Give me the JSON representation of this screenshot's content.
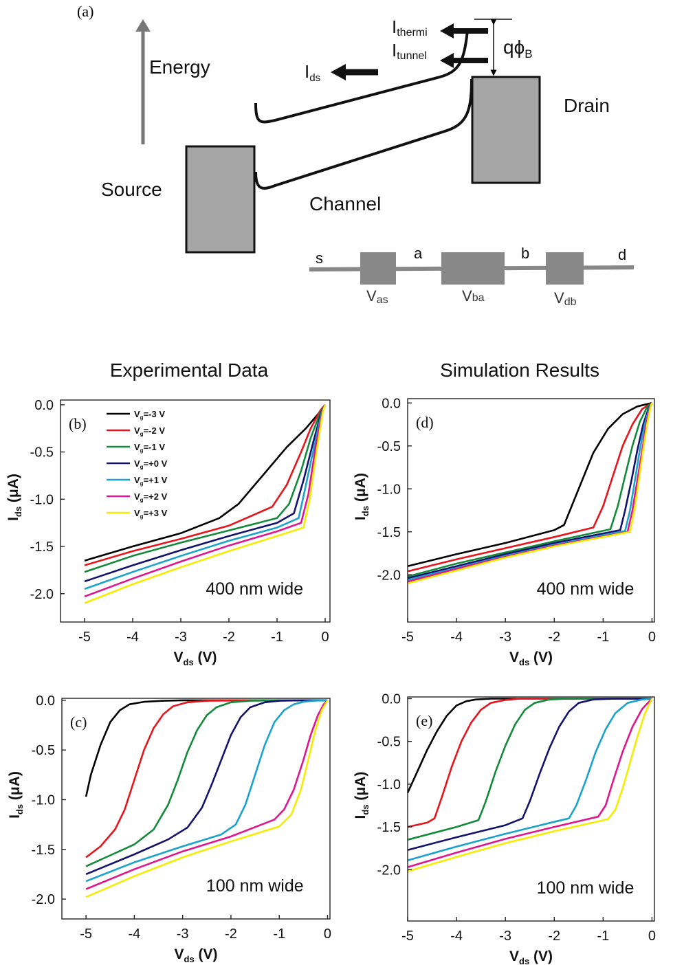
{
  "diagram": {
    "panel_label": "(a)",
    "energy_label": "Energy",
    "source_label": "Source",
    "drain_label": "Drain",
    "channel_label": "Channel",
    "ids_main": "I",
    "ids_sub": "ds",
    "ithermi_main": "I",
    "ithermi_sub": "thermi",
    "itunnel_main": "I",
    "itunnel_sub": "tunnel",
    "barrier_main": "qϕ",
    "barrier_sub": "B",
    "circuit": {
      "s": "s",
      "a": "a",
      "b": "b",
      "d": "d",
      "vas_main": "V",
      "vas_sub": "as",
      "vba_main": "V",
      "vba_sub": "ba",
      "vdb_main": "V",
      "vdb_sub": "db"
    }
  },
  "headings": {
    "left": "Experimental Data",
    "right": "Simulation Results"
  },
  "legend": [
    {
      "prefix": "V",
      "sub": "g",
      "value": "=-3 V",
      "color": "#000000"
    },
    {
      "prefix": "V",
      "sub": "g",
      "value": "=-2 V",
      "color": "#e8141b"
    },
    {
      "prefix": "V",
      "sub": "g",
      "value": "=-1 V",
      "color": "#128a3a"
    },
    {
      "prefix": "V",
      "sub": "g",
      "value": "=+0 V",
      "color": "#13136e"
    },
    {
      "prefix": "V",
      "sub": "g",
      "value": "=+1 V",
      "color": "#19a3cc"
    },
    {
      "prefix": "V",
      "sub": "g",
      "value": "=+2 V",
      "color": "#e0168f"
    },
    {
      "prefix": "V",
      "sub": "g",
      "value": "=+3 V",
      "color": "#f5ec00"
    }
  ],
  "chart_data": [
    {
      "id": "b",
      "type": "line",
      "panel_label": "(b)",
      "annotation": "400 nm wide",
      "xlabel_main": "V",
      "xlabel_sub": "ds",
      "xlabel_unit": " (V)",
      "ylabel_main": "I",
      "ylabel_sub": "ds",
      "ylabel_unit": " (μA)",
      "xlim": [
        -5.5,
        0.1
      ],
      "ylim": [
        -2.3,
        0.05
      ],
      "xticks": [
        -5,
        -4,
        -3,
        -2,
        -1,
        0
      ],
      "xtick_labels": [
        "-5",
        "-4",
        "-3",
        "-2",
        "-1",
        "0"
      ],
      "yticks": [
        0,
        -0.5,
        -1,
        -1.5,
        -2
      ],
      "ytick_labels": [
        "0.0",
        "-0.5",
        "-1.0",
        "-1.5",
        "-2.0"
      ],
      "series": [
        {
          "name": "Vg=-3 V",
          "color": "#000000",
          "x": [
            -5,
            -4,
            -3,
            -2.2,
            -1.8,
            -1.3,
            -0.8,
            -0.4,
            -0.15,
            0
          ],
          "y": [
            -1.65,
            -1.5,
            -1.36,
            -1.2,
            -1.05,
            -0.75,
            -0.45,
            -0.25,
            -0.1,
            0
          ]
        },
        {
          "name": "Vg=-2 V",
          "color": "#e8141b",
          "x": [
            -5,
            -4,
            -3,
            -2,
            -1.1,
            -0.8,
            -0.5,
            -0.3,
            -0.1,
            0
          ],
          "y": [
            -1.7,
            -1.55,
            -1.42,
            -1.28,
            -1.08,
            -0.85,
            -0.5,
            -0.25,
            -0.06,
            0
          ]
        },
        {
          "name": "Vg=-1 V",
          "color": "#128a3a",
          "x": [
            -5,
            -4,
            -3,
            -2,
            -1,
            -0.75,
            -0.5,
            -0.3,
            -0.1,
            0
          ],
          "y": [
            -1.77,
            -1.6,
            -1.46,
            -1.33,
            -1.2,
            -1.05,
            -0.7,
            -0.35,
            -0.08,
            0
          ]
        },
        {
          "name": "Vg=+0 V",
          "color": "#13136e",
          "x": [
            -5,
            -4,
            -3,
            -2,
            -1,
            -0.65,
            -0.45,
            -0.25,
            -0.08,
            0
          ],
          "y": [
            -1.87,
            -1.7,
            -1.54,
            -1.39,
            -1.25,
            -1.15,
            -0.8,
            -0.4,
            -0.08,
            0
          ]
        },
        {
          "name": "Vg=+1 V",
          "color": "#19a3cc",
          "x": [
            -5,
            -4,
            -3,
            -2,
            -1,
            -0.55,
            -0.4,
            -0.22,
            -0.07,
            0
          ],
          "y": [
            -1.95,
            -1.77,
            -1.6,
            -1.44,
            -1.3,
            -1.2,
            -0.85,
            -0.42,
            -0.08,
            0
          ]
        },
        {
          "name": "Vg=+2 V",
          "color": "#e0168f",
          "x": [
            -5,
            -4,
            -3,
            -2,
            -1,
            -0.5,
            -0.35,
            -0.2,
            -0.06,
            0
          ],
          "y": [
            -2.03,
            -1.84,
            -1.66,
            -1.49,
            -1.34,
            -1.25,
            -0.95,
            -0.45,
            -0.08,
            0
          ]
        },
        {
          "name": "Vg=+3 V",
          "color": "#f5ec00",
          "x": [
            -5,
            -4,
            -3,
            -2,
            -1,
            -0.45,
            -0.32,
            -0.18,
            -0.05,
            0
          ],
          "y": [
            -2.1,
            -1.9,
            -1.72,
            -1.55,
            -1.39,
            -1.3,
            -1.0,
            -0.5,
            -0.08,
            0
          ]
        }
      ]
    },
    {
      "id": "d",
      "type": "line",
      "panel_label": "(d)",
      "annotation": "400 nm wide",
      "xlabel_main": "V",
      "xlabel_sub": "ds",
      "xlabel_unit": " (V)",
      "ylabel_main": "I",
      "ylabel_sub": "ds",
      "ylabel_unit": " (μA)",
      "xlim": [
        -5,
        0.05
      ],
      "ylim": [
        -2.55,
        0.05
      ],
      "xticks": [
        -5,
        -4,
        -3,
        -2,
        -1,
        0
      ],
      "xtick_labels": [
        "-5",
        "-4",
        "-3",
        "-2",
        "-1",
        "0"
      ],
      "yticks": [
        0,
        -0.5,
        -1,
        -1.5,
        -2
      ],
      "ytick_labels": [
        "0.0",
        "-0.5",
        "-1.0",
        "-1.5",
        "-2.0"
      ],
      "series": [
        {
          "name": "Vg=-3 V",
          "color": "#000000",
          "x": [
            -5,
            -4,
            -3,
            -2,
            -1.8,
            -1.5,
            -1.2,
            -0.9,
            -0.6,
            -0.3,
            0
          ],
          "y": [
            -1.9,
            -1.76,
            -1.63,
            -1.48,
            -1.42,
            -1.0,
            -0.58,
            -0.3,
            -0.13,
            -0.04,
            0
          ]
        },
        {
          "name": "Vg=-2 V",
          "color": "#e8141b",
          "x": [
            -5,
            -4,
            -3,
            -2,
            -1.2,
            -1.0,
            -0.8,
            -0.6,
            -0.4,
            -0.2,
            0
          ],
          "y": [
            -1.96,
            -1.82,
            -1.69,
            -1.56,
            -1.45,
            -1.2,
            -0.85,
            -0.5,
            -0.25,
            -0.07,
            0
          ]
        },
        {
          "name": "Vg=-1 V",
          "color": "#128a3a",
          "x": [
            -5,
            -4,
            -3,
            -2,
            -0.85,
            -0.7,
            -0.55,
            -0.4,
            -0.25,
            -0.1,
            0
          ],
          "y": [
            -2.02,
            -1.87,
            -1.74,
            -1.61,
            -1.47,
            -1.2,
            -0.85,
            -0.5,
            -0.22,
            -0.05,
            0
          ]
        },
        {
          "name": "Vg=+0 V",
          "color": "#13136e",
          "x": [
            -5,
            -4,
            -3,
            -2,
            -0.65,
            -0.55,
            -0.42,
            -0.3,
            -0.18,
            -0.07,
            0
          ],
          "y": [
            -2.04,
            -1.9,
            -1.76,
            -1.63,
            -1.48,
            -1.25,
            -0.9,
            -0.55,
            -0.25,
            -0.06,
            0
          ]
        },
        {
          "name": "Vg=+1 V",
          "color": "#19a3cc",
          "x": [
            -5,
            -4,
            -3,
            -2,
            -0.55,
            -0.45,
            -0.35,
            -0.25,
            -0.15,
            -0.05,
            0
          ],
          "y": [
            -2.06,
            -1.92,
            -1.78,
            -1.65,
            -1.49,
            -1.25,
            -0.9,
            -0.55,
            -0.25,
            -0.05,
            0
          ]
        },
        {
          "name": "Vg=+2 V",
          "color": "#e0168f",
          "x": [
            -5,
            -4,
            -3,
            -2,
            -0.5,
            -0.4,
            -0.3,
            -0.2,
            -0.12,
            -0.04,
            0
          ],
          "y": [
            -2.08,
            -1.93,
            -1.79,
            -1.66,
            -1.5,
            -1.25,
            -0.9,
            -0.55,
            -0.25,
            -0.05,
            0
          ]
        },
        {
          "name": "Vg=+3 V",
          "color": "#f5ec00",
          "x": [
            -5,
            -4,
            -3,
            -2,
            -0.45,
            -0.36,
            -0.27,
            -0.18,
            -0.1,
            -0.03,
            0
          ],
          "y": [
            -2.1,
            -1.95,
            -1.8,
            -1.67,
            -1.5,
            -1.25,
            -0.9,
            -0.55,
            -0.25,
            -0.05,
            0
          ]
        }
      ]
    },
    {
      "id": "c",
      "type": "line",
      "panel_label": "(c)",
      "annotation": "100 nm wide",
      "xlabel_main": "V",
      "xlabel_sub": "ds",
      "xlabel_unit": " (V)",
      "ylabel_main": "I",
      "ylabel_sub": "ds",
      "ylabel_unit": " (μA)",
      "xlim": [
        -5.5,
        0.05
      ],
      "ylim": [
        -2.2,
        0.02
      ],
      "xticks": [
        -5,
        -4,
        -3,
        -2,
        -1,
        0
      ],
      "xtick_labels": [
        "-5",
        "-4",
        "-3",
        "-2",
        "-1",
        "0"
      ],
      "yticks": [
        0,
        -0.5,
        -1,
        -1.5,
        -2
      ],
      "ytick_labels": [
        "0.0",
        "-0.5",
        "-1.0",
        "-1.5",
        "-2.0"
      ],
      "series": [
        {
          "name": "Vg=-3 V",
          "color": "#000000",
          "x": [
            -5,
            -4.9,
            -4.7,
            -4.5,
            -4.3,
            -4.1,
            -3.8,
            -3.4,
            -3,
            -2,
            -1,
            0
          ],
          "y": [
            -0.97,
            -0.75,
            -0.45,
            -0.22,
            -0.1,
            -0.04,
            -0.015,
            -0.005,
            0,
            0,
            0,
            0
          ]
        },
        {
          "name": "Vg=-2 V",
          "color": "#e8141b",
          "x": [
            -5,
            -4.7,
            -4.4,
            -4.2,
            -4.0,
            -3.8,
            -3.6,
            -3.4,
            -3.2,
            -2.9,
            -2.5,
            -1.5,
            0
          ],
          "y": [
            -1.58,
            -1.47,
            -1.3,
            -1.1,
            -0.8,
            -0.5,
            -0.28,
            -0.14,
            -0.06,
            -0.02,
            -0.005,
            0,
            0
          ]
        },
        {
          "name": "Vg=-1 V",
          "color": "#128a3a",
          "x": [
            -5,
            -4.5,
            -4,
            -3.6,
            -3.3,
            -3.1,
            -2.9,
            -2.7,
            -2.5,
            -2.3,
            -2.0,
            -1.6,
            -1.0,
            0
          ],
          "y": [
            -1.67,
            -1.56,
            -1.45,
            -1.3,
            -1.05,
            -0.8,
            -0.52,
            -0.3,
            -0.15,
            -0.07,
            -0.02,
            -0.005,
            0,
            0
          ]
        },
        {
          "name": "Vg=+0 V",
          "color": "#13136e",
          "x": [
            -5,
            -4,
            -3.3,
            -2.9,
            -2.6,
            -2.4,
            -2.2,
            -2.0,
            -1.8,
            -1.6,
            -1.3,
            -1.0,
            -0.5,
            0
          ],
          "y": [
            -1.75,
            -1.55,
            -1.4,
            -1.28,
            -1.08,
            -0.85,
            -0.6,
            -0.35,
            -0.17,
            -0.07,
            -0.02,
            -0.005,
            0,
            0
          ]
        },
        {
          "name": "Vg=+1 V",
          "color": "#19a3cc",
          "x": [
            -5,
            -4,
            -3,
            -2.2,
            -1.9,
            -1.7,
            -1.5,
            -1.3,
            -1.1,
            -0.9,
            -0.7,
            -0.5,
            -0.3,
            0
          ],
          "y": [
            -1.82,
            -1.63,
            -1.47,
            -1.35,
            -1.25,
            -1.05,
            -0.75,
            -0.45,
            -0.22,
            -0.1,
            -0.04,
            -0.015,
            -0.005,
            0
          ]
        },
        {
          "name": "Vg=+2 V",
          "color": "#e0168f",
          "x": [
            -5,
            -4,
            -3,
            -2,
            -1.1,
            -0.9,
            -0.7,
            -0.5,
            -0.35,
            -0.2,
            -0.08,
            0
          ],
          "y": [
            -1.9,
            -1.7,
            -1.52,
            -1.37,
            -1.2,
            -1.1,
            -0.9,
            -0.6,
            -0.35,
            -0.15,
            -0.04,
            0
          ]
        },
        {
          "name": "Vg=+3 V",
          "color": "#f5ec00",
          "x": [
            -5,
            -4,
            -3,
            -2,
            -1,
            -0.75,
            -0.55,
            -0.4,
            -0.25,
            -0.12,
            0
          ],
          "y": [
            -1.98,
            -1.77,
            -1.58,
            -1.42,
            -1.27,
            -1.15,
            -0.9,
            -0.6,
            -0.3,
            -0.1,
            0
          ]
        }
      ]
    },
    {
      "id": "e",
      "type": "line",
      "panel_label": "(e)",
      "annotation": "100 nm wide",
      "xlabel_main": "V",
      "xlabel_sub": "ds",
      "xlabel_unit": " (V)",
      "ylabel_main": "I",
      "ylabel_sub": "ds",
      "ylabel_unit": " (μA)",
      "xlim": [
        -5,
        0.05
      ],
      "ylim": [
        -2.6,
        0.02
      ],
      "xticks": [
        -5,
        -4,
        -3,
        -2,
        -1,
        0
      ],
      "xtick_labels": [
        "-5",
        "-4",
        "-3",
        "-2",
        "-1",
        "0"
      ],
      "yticks": [
        0,
        -0.5,
        -1,
        -1.5,
        -2
      ],
      "ytick_labels": [
        "0.0",
        "-0.5",
        "-1.0",
        "-1.5",
        "-2.0"
      ],
      "series": [
        {
          "name": "Vg=-3 V",
          "color": "#000000",
          "x": [
            -5,
            -4.8,
            -4.6,
            -4.4,
            -4.2,
            -4.0,
            -3.8,
            -3.6,
            -3.3,
            -3,
            -2,
            0
          ],
          "y": [
            -1.1,
            -0.85,
            -0.6,
            -0.38,
            -0.2,
            -0.08,
            -0.03,
            -0.01,
            0,
            0,
            0,
            0
          ]
        },
        {
          "name": "Vg=-2 V",
          "color": "#e8141b",
          "x": [
            -5,
            -4.6,
            -4.45,
            -4.3,
            -4.1,
            -3.9,
            -3.7,
            -3.5,
            -3.3,
            -3.0,
            -2.7,
            -2,
            0
          ],
          "y": [
            -1.5,
            -1.45,
            -1.4,
            -1.15,
            -0.8,
            -0.5,
            -0.28,
            -0.13,
            -0.05,
            -0.015,
            0,
            0,
            0
          ]
        },
        {
          "name": "Vg=-1 V",
          "color": "#128a3a",
          "x": [
            -5,
            -4,
            -3.55,
            -3.4,
            -3.2,
            -3.0,
            -2.8,
            -2.6,
            -2.4,
            -2.1,
            -1.7,
            0
          ],
          "y": [
            -1.65,
            -1.5,
            -1.42,
            -1.2,
            -0.85,
            -0.55,
            -0.3,
            -0.13,
            -0.05,
            -0.01,
            0,
            0
          ]
        },
        {
          "name": "Vg=+0 V",
          "color": "#13136e",
          "x": [
            -5,
            -4,
            -3,
            -2.65,
            -2.5,
            -2.3,
            -2.1,
            -1.9,
            -1.7,
            -1.5,
            -1.2,
            -0.8,
            0
          ],
          "y": [
            -1.77,
            -1.62,
            -1.48,
            -1.4,
            -1.2,
            -0.88,
            -0.58,
            -0.33,
            -0.15,
            -0.05,
            -0.01,
            0,
            0
          ]
        },
        {
          "name": "Vg=+1 V",
          "color": "#19a3cc",
          "x": [
            -5,
            -4,
            -3,
            -2,
            -1.7,
            -1.55,
            -1.35,
            -1.15,
            -0.95,
            -0.75,
            -0.5,
            -0.2,
            0
          ],
          "y": [
            -1.89,
            -1.73,
            -1.58,
            -1.44,
            -1.4,
            -1.25,
            -0.95,
            -0.62,
            -0.36,
            -0.17,
            -0.05,
            -0.01,
            0
          ]
        },
        {
          "name": "Vg=+2 V",
          "color": "#e0168f",
          "x": [
            -5,
            -4,
            -3,
            -2,
            -1.1,
            -0.95,
            -0.8,
            -0.6,
            -0.4,
            -0.2,
            0
          ],
          "y": [
            -1.97,
            -1.8,
            -1.64,
            -1.5,
            -1.38,
            -1.25,
            -0.97,
            -0.62,
            -0.33,
            -0.12,
            0
          ]
        },
        {
          "name": "Vg=+3 V",
          "color": "#f5ec00",
          "x": [
            -5,
            -4,
            -3,
            -2,
            -0.9,
            -0.75,
            -0.6,
            -0.45,
            -0.3,
            -0.15,
            0
          ],
          "y": [
            -2.02,
            -1.85,
            -1.69,
            -1.55,
            -1.41,
            -1.3,
            -1.05,
            -0.75,
            -0.45,
            -0.18,
            0
          ]
        }
      ]
    }
  ]
}
